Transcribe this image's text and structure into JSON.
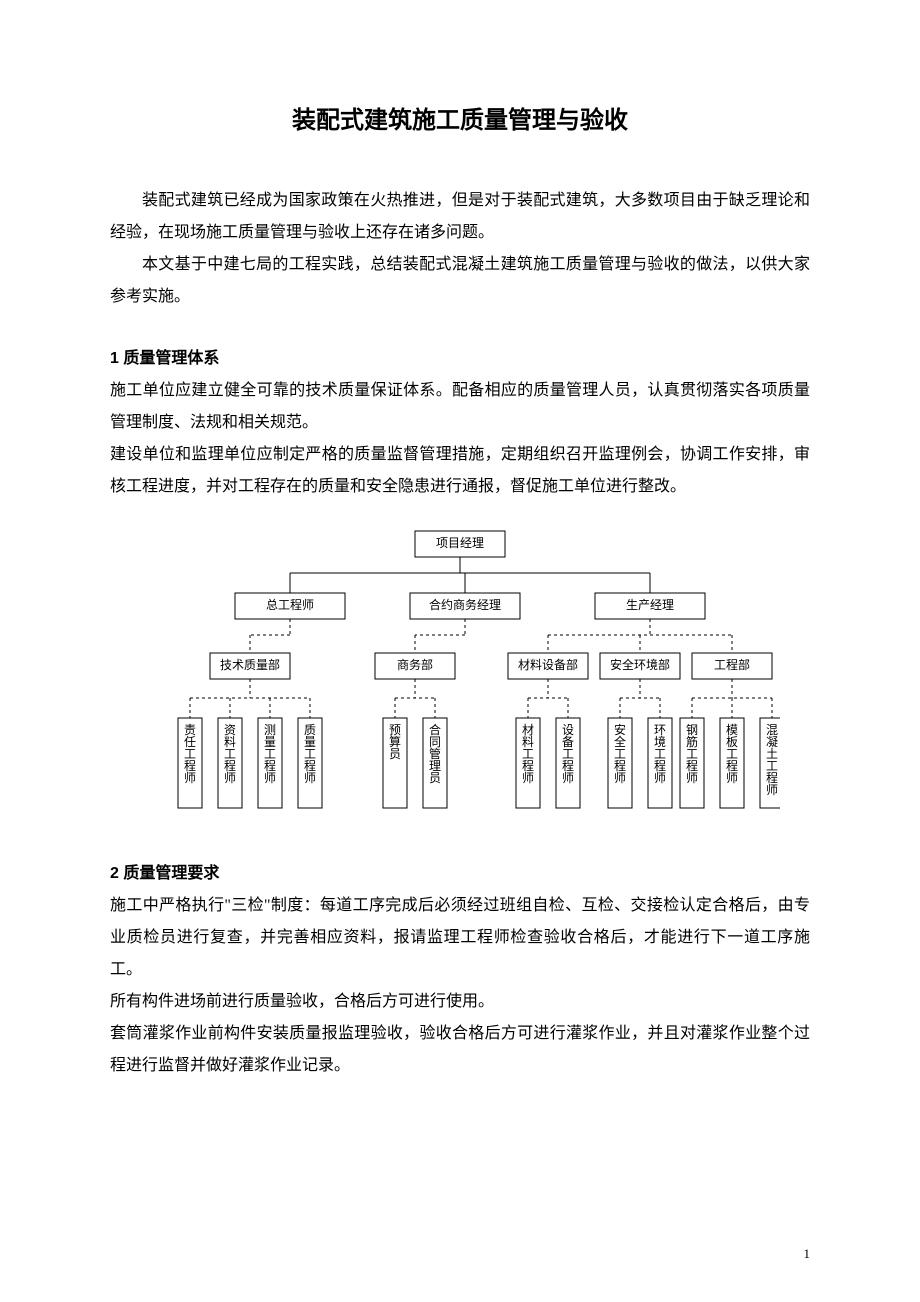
{
  "title": "装配式建筑施工质量管理与验收",
  "intro": {
    "p1": "装配式建筑已经成为国家政策在火热推进，但是对于装配式建筑，大多数项目由于缺乏理论和经验，在现场施工质量管理与验收上还存在诸多问题。",
    "p2": "本文基于中建七局的工程实践，总结装配式混凝土建筑施工质量管理与验收的做法，以供大家参考实施。"
  },
  "section1": {
    "heading": "1 质量管理体系",
    "p1": "施工单位应建立健全可靠的技术质量保证体系。配备相应的质量管理人员，认真贯彻落实各项质量管理制度、法规和相关规范。",
    "p2": "建设单位和监理单位应制定严格的质量监督管理措施，定期组织召开监理例会，协调工作安排，审核工程进度，并对工程存在的质量和安全隐患进行通报，督促施工单位进行整改。"
  },
  "section2": {
    "heading": "2 质量管理要求",
    "p1": "施工中严格执行\"三检\"制度：每道工序完成后必须经过班组自检、互检、交接检认定合格后，由专业质检员进行复查，并完善相应资料，报请监理工程师检查验收合格后，才能进行下一道工序施工。",
    "p2": "所有构件进场前进行质量验收，合格后方可进行使用。",
    "p3": "套筒灌浆作业前构件安装质量报监理验收，验收合格后方可进行灌浆作业，并且对灌浆作业整个过程进行监督并做好灌浆作业记录。"
  },
  "chart": {
    "background_color": "#ffffff",
    "box_border_color": "#000000",
    "line_color": "#000000",
    "dashed_pattern": "3,3",
    "box_fill": "#ffffff",
    "font_size": 12,
    "level1": {
      "label": "项目经理"
    },
    "level2": [
      {
        "label": "总工程师"
      },
      {
        "label": "合约商务经理"
      },
      {
        "label": "生产经理"
      }
    ],
    "level3": [
      {
        "label": "技术质量部",
        "parent": 0
      },
      {
        "label": "商务部",
        "parent": 1
      },
      {
        "label": "材料设备部",
        "parent": 2
      },
      {
        "label": "安全环境部",
        "parent": 2
      },
      {
        "label": "工程部",
        "parent": 2
      }
    ],
    "level4": [
      {
        "label": "责任工程师",
        "parent": 0
      },
      {
        "label": "资料工程师",
        "parent": 0
      },
      {
        "label": "测量工程师",
        "parent": 0
      },
      {
        "label": "质量工程师",
        "parent": 0
      },
      {
        "label": "预算员",
        "parent": 1
      },
      {
        "label": "合同管理员",
        "parent": 1
      },
      {
        "label": "材料工程师",
        "parent": 2
      },
      {
        "label": "设备工程师",
        "parent": 2
      },
      {
        "label": "安全工程师",
        "parent": 3
      },
      {
        "label": "环境工程师",
        "parent": 3
      },
      {
        "label": "钢筋工程师",
        "parent": 4
      },
      {
        "label": "模板工程师",
        "parent": 4
      },
      {
        "label": "混凝土工程师",
        "parent": 4
      }
    ]
  },
  "page_number": "1"
}
